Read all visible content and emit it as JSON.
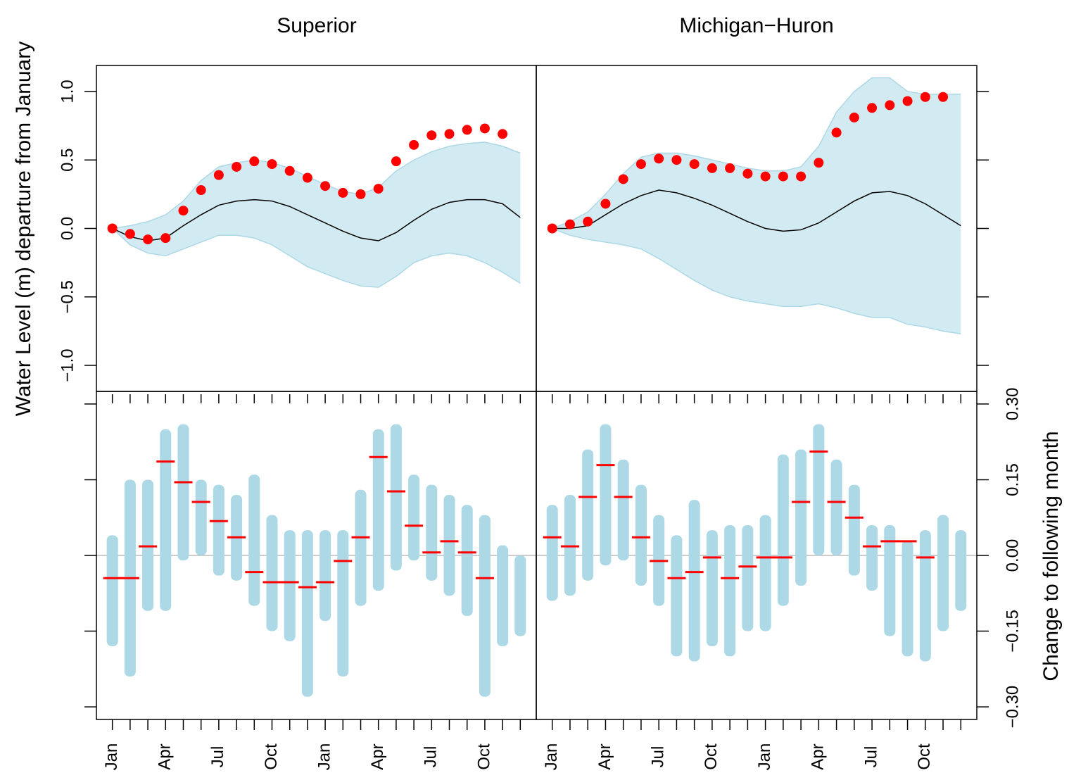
{
  "chart_data": [
    {
      "type": "line",
      "title": "Superior",
      "ylabel": "Water Level (m) departure from January",
      "ylim": [
        -1.19,
        1.19
      ],
      "yticks": [
        {
          "value": -1,
          "label": "−1.0"
        },
        {
          "value": -0.5,
          "label": "−0.5"
        },
        {
          "value": 0,
          "label": "0.0"
        },
        {
          "value": 0.5,
          "label": "0.5"
        },
        {
          "value": 1,
          "label": "1.0"
        }
      ],
      "ensemble_color": "#add8e6",
      "ensemble_upper": [
        0,
        0.02,
        0.05,
        0.1,
        0.2,
        0.35,
        0.45,
        0.48,
        0.5,
        0.48,
        0.44,
        0.38,
        0.32,
        0.27,
        0.25,
        0.3,
        0.42,
        0.5,
        0.56,
        0.6,
        0.62,
        0.63,
        0.6,
        0.55
      ],
      "ensemble_lower": [
        0,
        -0.12,
        -0.18,
        -0.2,
        -0.15,
        -0.1,
        -0.05,
        -0.05,
        -0.07,
        -0.12,
        -0.2,
        -0.28,
        -0.33,
        -0.38,
        -0.42,
        -0.43,
        -0.35,
        -0.25,
        -0.2,
        -0.18,
        -0.2,
        -0.25,
        -0.32,
        -0.4
      ],
      "mean_color": "#000000",
      "mean": [
        0,
        -0.06,
        -0.09,
        -0.07,
        0.02,
        0.1,
        0.17,
        0.2,
        0.21,
        0.2,
        0.16,
        0.1,
        0.04,
        -0.02,
        -0.07,
        -0.09,
        -0.03,
        0.06,
        0.14,
        0.19,
        0.21,
        0.21,
        0.18,
        0.08
      ],
      "observed_color": "#ff0000",
      "observed": [
        0,
        -0.04,
        -0.08,
        -0.07,
        0.13,
        0.28,
        0.39,
        0.45,
        0.49,
        0.47,
        0.42,
        0.37,
        0.31,
        0.26,
        0.25,
        0.29,
        0.49,
        0.61,
        0.68,
        0.69,
        0.72,
        0.73,
        0.69,
        null
      ]
    },
    {
      "type": "line",
      "title": "Michigan−Huron",
      "ylim": [
        -1.19,
        1.19
      ],
      "yticks": [
        -1,
        -0.5,
        0,
        0.5,
        1
      ],
      "ensemble_color": "#add8e6",
      "ensemble_upper": [
        0,
        0.05,
        0.12,
        0.25,
        0.4,
        0.52,
        0.55,
        0.55,
        0.53,
        0.5,
        0.47,
        0.44,
        0.42,
        0.42,
        0.45,
        0.6,
        0.85,
        1.0,
        1.1,
        1.1,
        1.0,
        0.98,
        0.98,
        0.98
      ],
      "ensemble_lower": [
        0,
        -0.05,
        -0.08,
        -0.1,
        -0.12,
        -0.15,
        -0.22,
        -0.3,
        -0.38,
        -0.45,
        -0.5,
        -0.53,
        -0.55,
        -0.57,
        -0.57,
        -0.55,
        -0.58,
        -0.62,
        -0.65,
        -0.65,
        -0.7,
        -0.72,
        -0.75,
        -0.77
      ],
      "mean_color": "#000000",
      "mean": [
        0,
        0,
        0.02,
        0.1,
        0.18,
        0.24,
        0.28,
        0.26,
        0.22,
        0.17,
        0.11,
        0.05,
        0,
        -0.02,
        -0.01,
        0.04,
        0.12,
        0.2,
        0.26,
        0.27,
        0.24,
        0.18,
        0.1,
        0.02
      ],
      "observed_color": "#ff0000",
      "observed": [
        0,
        0.03,
        0.05,
        0.18,
        0.36,
        0.47,
        0.51,
        0.5,
        0.47,
        0.44,
        0.44,
        0.4,
        0.38,
        0.38,
        0.38,
        0.48,
        0.7,
        0.81,
        0.88,
        0.9,
        0.93,
        0.96,
        0.96,
        null
      ]
    },
    {
      "type": "strip",
      "categories": [
        "Jan",
        null,
        null,
        "Apr",
        null,
        null,
        "Jul",
        null,
        null,
        "Oct",
        null,
        null,
        "Jan",
        null,
        null,
        "Apr",
        null,
        null,
        "Jul",
        null,
        null,
        "Oct",
        null,
        null
      ],
      "ylim": [
        -0.325,
        0.325
      ],
      "yticks": [
        -0.3,
        -0.15,
        0,
        0.15,
        0.3
      ],
      "cloud_color": "#add8e6",
      "min": [
        -0.18,
        -0.24,
        -0.11,
        -0.11,
        -0.01,
        0,
        -0.04,
        -0.05,
        -0.1,
        -0.15,
        -0.17,
        -0.28,
        -0.13,
        -0.24,
        -0.1,
        -0.07,
        -0.03,
        -0.01,
        -0.05,
        -0.08,
        -0.12,
        -0.28,
        -0.18,
        -0.16
      ],
      "max": [
        0.04,
        0.15,
        0.15,
        0.25,
        0.26,
        0.15,
        0.14,
        0.12,
        0.16,
        0.08,
        0.05,
        0.05,
        0.05,
        0.05,
        0.13,
        0.25,
        0.26,
        0.16,
        0.14,
        0.12,
        0.1,
        0.08,
        0.02,
        0
      ],
      "median_color": "#ff0000",
      "median": [
        -0.045,
        -0.045,
        0.018,
        0.186,
        0.145,
        0.106,
        0.068,
        0.036,
        -0.033,
        -0.053,
        -0.053,
        -0.063,
        -0.053,
        -0.011,
        0.036,
        0.195,
        0.127,
        0.059,
        0.006,
        0.028,
        0.006,
        -0.045,
        null,
        null
      ]
    },
    {
      "type": "strip",
      "ylabel": "Change to following month",
      "categories": [
        "Jan",
        null,
        null,
        "Apr",
        null,
        null,
        "Jul",
        null,
        null,
        "Oct",
        null,
        null,
        "Jan",
        null,
        null,
        "Apr",
        null,
        null,
        "Jul",
        null,
        null,
        "Oct",
        null,
        null
      ],
      "ylim": [
        -0.325,
        0.325
      ],
      "yticks": [
        {
          "value": -0.3,
          "label": "−0.30"
        },
        {
          "value": -0.15,
          "label": "−0.15"
        },
        {
          "value": 0,
          "label": "0.00"
        },
        {
          "value": 0.15,
          "label": "0.15"
        },
        {
          "value": 0.3,
          "label": "0.30"
        }
      ],
      "cloud_color": "#add8e6",
      "min": [
        -0.09,
        -0.08,
        -0.05,
        -0.02,
        -0.01,
        -0.06,
        -0.1,
        -0.2,
        -0.21,
        -0.18,
        -0.2,
        -0.15,
        -0.15,
        -0.1,
        -0.06,
        0,
        0,
        -0.04,
        -0.07,
        -0.16,
        -0.2,
        -0.21,
        -0.15,
        -0.11
      ],
      "max": [
        0.1,
        0.12,
        0.21,
        0.26,
        0.19,
        0.14,
        0.08,
        0.04,
        0.11,
        0.05,
        0.06,
        0.06,
        0.08,
        0.2,
        0.21,
        0.26,
        0.19,
        0.14,
        0.06,
        0.06,
        0.03,
        0.05,
        0.08,
        0.05
      ],
      "median_color": "#ff0000",
      "median": [
        0.036,
        0.018,
        0.116,
        0.179,
        0.116,
        0.036,
        -0.011,
        -0.045,
        -0.033,
        -0.004,
        -0.045,
        -0.022,
        -0.004,
        -0.004,
        0.106,
        0.206,
        0.106,
        0.075,
        0.018,
        0.028,
        0.028,
        -0.004,
        null,
        null
      ]
    }
  ]
}
